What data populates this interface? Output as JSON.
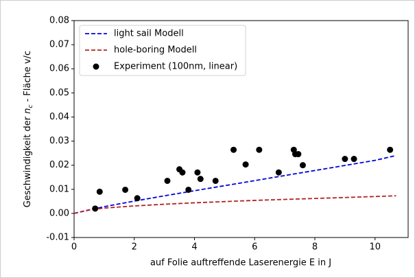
{
  "chart_data": {
    "type": "line",
    "xlabel": "auf Folie auftreffende Laserenergie E in J",
    "ylabel": {
      "pre": "Geschwindigkeit der ",
      "var": "n",
      "sub": "c",
      "post": " - Fläche v/c"
    },
    "xlim": [
      0,
      11.1
    ],
    "ylim": [
      -0.01,
      0.08
    ],
    "xticks": [
      0,
      2,
      4,
      6,
      8,
      10
    ],
    "yticks": [
      {
        "value": -0.01,
        "label": "-0.01"
      },
      {
        "value": 0,
        "label": "0.00"
      },
      {
        "value": 0.01,
        "label": "0.01"
      },
      {
        "value": 0.02,
        "label": "0.02"
      },
      {
        "value": 0.03,
        "label": "0.03"
      },
      {
        "value": 0.04,
        "label": "0.04"
      },
      {
        "value": 0.05,
        "label": "0.05"
      },
      {
        "value": 0.06,
        "label": "0.06"
      },
      {
        "value": 0.07,
        "label": "0.07"
      },
      {
        "value": 0.08,
        "label": "0.08"
      }
    ],
    "legend": "upper left",
    "series": [
      {
        "name": "light sail Modell",
        "type": "line",
        "linestyle": "dashed",
        "color": "#0000dd",
        "x": [
          0,
          1,
          2,
          3,
          4,
          5,
          6,
          7,
          8,
          9,
          10,
          10.7
        ],
        "values": [
          0,
          0.0028,
          0.0051,
          0.0073,
          0.0094,
          0.0115,
          0.0136,
          0.0157,
          0.0178,
          0.0199,
          0.022,
          0.024
        ]
      },
      {
        "name": "hole-boring Modell",
        "type": "line",
        "linestyle": "dashed",
        "color": "#b22222",
        "x": [
          0,
          0.5,
          1,
          2,
          3,
          4,
          5,
          6,
          7,
          8,
          9,
          10,
          10.7
        ],
        "values": [
          0,
          0.0015,
          0.0022,
          0.0031,
          0.0038,
          0.0044,
          0.0049,
          0.0054,
          0.0058,
          0.0062,
          0.0066,
          0.007,
          0.0073
        ]
      },
      {
        "name": "Experiment (100nm, linear)",
        "type": "scatter",
        "color": "#000000",
        "x": [
          0.7,
          0.85,
          1.7,
          2.1,
          3.1,
          3.5,
          3.6,
          3.8,
          4.1,
          4.2,
          4.7,
          5.3,
          5.7,
          6.15,
          6.8,
          7.3,
          7.35,
          7.45,
          7.6,
          9.0,
          9.3,
          10.5
        ],
        "values": [
          0.002,
          0.009,
          0.0098,
          0.0063,
          0.0135,
          0.0183,
          0.017,
          0.0098,
          0.017,
          0.0143,
          0.0135,
          0.0264,
          0.0203,
          0.0264,
          0.017,
          0.0264,
          0.0246,
          0.0246,
          0.02,
          0.0226,
          0.0226,
          0.0264
        ]
      }
    ]
  }
}
